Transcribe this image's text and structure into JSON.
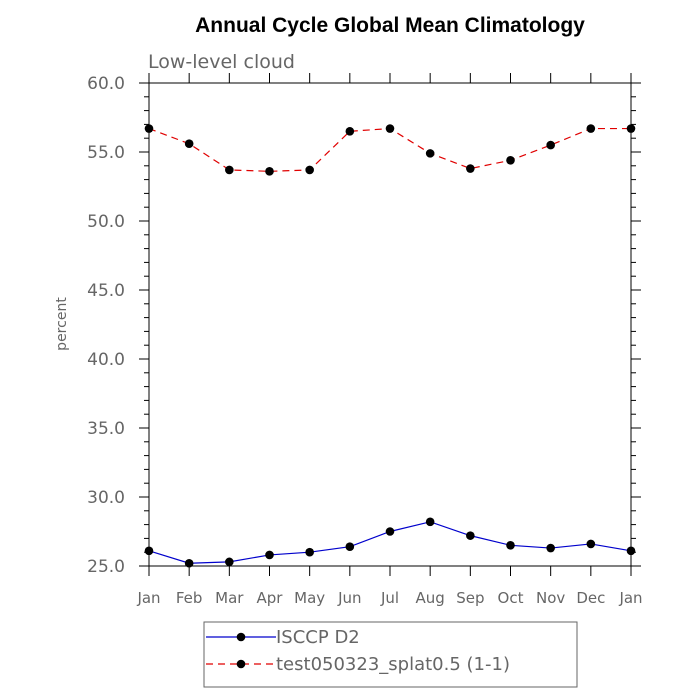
{
  "chart_data": {
    "type": "line",
    "title": "Annual Cycle Global Mean Climatology",
    "subtitle": "Low-level cloud",
    "ylabel": "percent",
    "xlabel": "",
    "ylim": [
      25.0,
      60.0
    ],
    "y_ticks": [
      "25.0",
      "30.0",
      "35.0",
      "40.0",
      "45.0",
      "50.0",
      "55.0",
      "60.0"
    ],
    "categories": [
      "Jan",
      "Feb",
      "Mar",
      "Apr",
      "May",
      "Jun",
      "Jul",
      "Aug",
      "Sep",
      "Oct",
      "Nov",
      "Dec",
      "Jan"
    ],
    "series": [
      {
        "name": "ISCCP D2",
        "color": "#0000cc",
        "dash": "solid",
        "values": [
          26.1,
          25.2,
          25.3,
          25.8,
          26.0,
          26.4,
          27.5,
          28.2,
          27.2,
          26.5,
          26.3,
          26.6,
          26.1
        ]
      },
      {
        "name": "test050323_splat0.5 (1-1)",
        "color": "#e00000",
        "dash": "dashed",
        "values": [
          56.7,
          55.6,
          53.7,
          53.6,
          53.7,
          56.5,
          56.7,
          54.9,
          53.8,
          54.4,
          55.5,
          56.7,
          56.7
        ]
      }
    ],
    "legend_position": "bottom-center",
    "grid": false
  }
}
